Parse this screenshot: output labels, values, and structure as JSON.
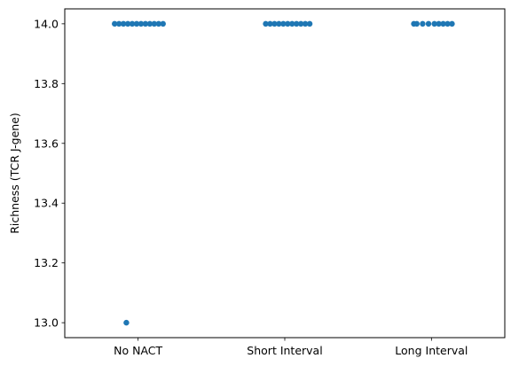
{
  "chart_data": {
    "type": "scatter",
    "subtype": "strip",
    "title": "",
    "xlabel": "",
    "ylabel": "Richness (TCR J-gene)",
    "categories": [
      "No NACT",
      "Short Interval",
      "Long Interval"
    ],
    "ylim": [
      12.95,
      14.05
    ],
    "yticks": [
      13.0,
      13.2,
      13.4,
      13.6,
      13.8,
      14.0
    ],
    "ytick_labels": [
      "13.0",
      "13.2",
      "13.4",
      "13.6",
      "13.8",
      "14.0"
    ],
    "grid": false,
    "legend": "none",
    "marker_color": "#1f77b4",
    "points": [
      {
        "category": "No NACT",
        "y": 14.0,
        "jitter": -0.16
      },
      {
        "category": "No NACT",
        "y": 14.0,
        "jitter": -0.13
      },
      {
        "category": "No NACT",
        "y": 14.0,
        "jitter": -0.1
      },
      {
        "category": "No NACT",
        "y": 14.0,
        "jitter": -0.07
      },
      {
        "category": "No NACT",
        "y": 14.0,
        "jitter": -0.04
      },
      {
        "category": "No NACT",
        "y": 14.0,
        "jitter": -0.01
      },
      {
        "category": "No NACT",
        "y": 14.0,
        "jitter": 0.02
      },
      {
        "category": "No NACT",
        "y": 14.0,
        "jitter": 0.05
      },
      {
        "category": "No NACT",
        "y": 14.0,
        "jitter": 0.08
      },
      {
        "category": "No NACT",
        "y": 14.0,
        "jitter": 0.11
      },
      {
        "category": "No NACT",
        "y": 14.0,
        "jitter": 0.14
      },
      {
        "category": "No NACT",
        "y": 14.0,
        "jitter": 0.17
      },
      {
        "category": "No NACT",
        "y": 13.0,
        "jitter": -0.08
      },
      {
        "category": "Short Interval",
        "y": 14.0,
        "jitter": -0.13
      },
      {
        "category": "Short Interval",
        "y": 14.0,
        "jitter": -0.1
      },
      {
        "category": "Short Interval",
        "y": 14.0,
        "jitter": -0.07
      },
      {
        "category": "Short Interval",
        "y": 14.0,
        "jitter": -0.04
      },
      {
        "category": "Short Interval",
        "y": 14.0,
        "jitter": -0.01
      },
      {
        "category": "Short Interval",
        "y": 14.0,
        "jitter": 0.02
      },
      {
        "category": "Short Interval",
        "y": 14.0,
        "jitter": 0.05
      },
      {
        "category": "Short Interval",
        "y": 14.0,
        "jitter": 0.08
      },
      {
        "category": "Short Interval",
        "y": 14.0,
        "jitter": 0.11
      },
      {
        "category": "Short Interval",
        "y": 14.0,
        "jitter": 0.14
      },
      {
        "category": "Short Interval",
        "y": 14.0,
        "jitter": 0.17
      },
      {
        "category": "Long Interval",
        "y": 14.0,
        "jitter": -0.12
      },
      {
        "category": "Long Interval",
        "y": 14.0,
        "jitter": -0.1
      },
      {
        "category": "Long Interval",
        "y": 14.0,
        "jitter": -0.06
      },
      {
        "category": "Long Interval",
        "y": 14.0,
        "jitter": -0.02
      },
      {
        "category": "Long Interval",
        "y": 14.0,
        "jitter": 0.02
      },
      {
        "category": "Long Interval",
        "y": 14.0,
        "jitter": 0.05
      },
      {
        "category": "Long Interval",
        "y": 14.0,
        "jitter": 0.08
      },
      {
        "category": "Long Interval",
        "y": 14.0,
        "jitter": 0.11
      },
      {
        "category": "Long Interval",
        "y": 14.0,
        "jitter": 0.14
      }
    ]
  }
}
